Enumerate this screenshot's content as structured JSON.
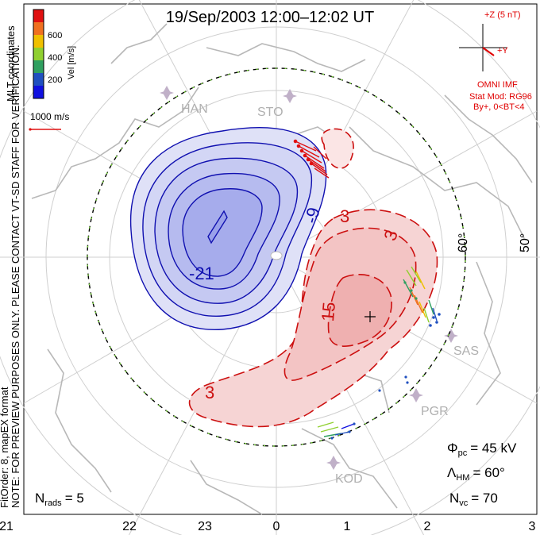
{
  "title": "19/Sep/2003 12:00–12:02 UT",
  "side_note": {
    "line1": "NOTE: FOR PREVIEW PURPOSES ONLY. PLEASE CONTACT VT-SD STAFF FOR VERIFICATION.",
    "line2": "FitOrder: 8, mapEX format",
    "coords": "MLT coordinates"
  },
  "velocity_scale": {
    "label": "Vel [m/s]",
    "ticks": [
      "600",
      "400",
      "200"
    ],
    "colors": [
      "#e01010",
      "#f07020",
      "#f0c000",
      "#90d030",
      "#30a060",
      "#2050c0",
      "#1010e0"
    ]
  },
  "vector_scale_label": "1000 m/s",
  "imf": {
    "z_label": "+Z (5 nT)",
    "y_label": "+Y",
    "source": "OMNI IMF",
    "model": "Stat Mod: RG96",
    "condition": "By+, 0<BT<4",
    "color": "#e00000"
  },
  "stations": [
    "HAN",
    "STO",
    "SAS",
    "PGR",
    "KOD"
  ],
  "latitude_labels": [
    "60°",
    "50°"
  ],
  "contour_labels": {
    "neg": [
      "-21",
      "-9"
    ],
    "pos": [
      "15",
      "3",
      "3",
      "3"
    ]
  },
  "stats": {
    "phi_pc_sym": "Φ",
    "phi_pc_sub": "pc",
    "phi_pc_value": "= 45 kV",
    "lambda_hm_sym": "Λ",
    "lambda_hm_sub": "HM",
    "lambda_hm_value": "= 60°",
    "n_vc_sym": "N",
    "n_vc_sub": "vc",
    "n_vc_value": "= 70",
    "n_rads_sym": "N",
    "n_rads_sub": "rads",
    "n_rads_value": "= 5"
  },
  "mlt_axis": [
    "21",
    "22",
    "23",
    "0",
    "1",
    "2",
    "3"
  ],
  "colors": {
    "negative_fill": "#c9ccf3",
    "negative_line": "#1010b0",
    "positive_fill": "#f6d4d4",
    "positive_line": "#cc1010",
    "grid": "#cfcfcf",
    "coast": "#b8b8b8",
    "hm_boundary": "#7ad83a"
  }
}
